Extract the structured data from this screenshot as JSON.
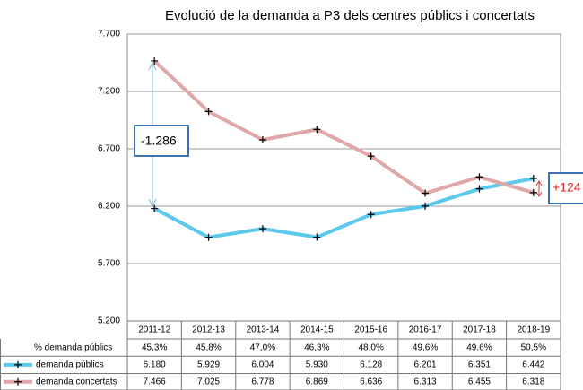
{
  "chart_data": {
    "type": "line",
    "title": "Evolució de la demanda a P3 dels centres públics i concertats",
    "categories": [
      "2011-12",
      "2012-13",
      "2013-14",
      "2014-15",
      "2015-16",
      "2016-17",
      "2017-18",
      "2018-19"
    ],
    "series": [
      {
        "name": "demanda públics",
        "color": "#5bc8ec",
        "values": [
          6180,
          5929,
          6004,
          5930,
          6128,
          6201,
          6351,
          6442
        ],
        "value_labels": [
          "6.180",
          "5.929",
          "6.004",
          "5.930",
          "6.128",
          "6.201",
          "6.351",
          "6.442"
        ]
      },
      {
        "name": "demanda concertats",
        "color": "#dfa7a7",
        "values": [
          7466,
          7025,
          6778,
          6869,
          6636,
          6313,
          6455,
          6318
        ],
        "value_labels": [
          "7.466",
          "7.025",
          "6.778",
          "6.869",
          "6.636",
          "6.313",
          "6.455",
          "6.318"
        ]
      }
    ],
    "table_rows": [
      {
        "name": "% demanda públics",
        "cells": [
          "45,3%",
          "45,8%",
          "47,0%",
          "46,3%",
          "48,0%",
          "49,6%",
          "49,6%",
          "50,5%"
        ]
      }
    ],
    "annotations": [
      "-1.286",
      "+124"
    ],
    "ylim": [
      5200,
      7700
    ],
    "yticks": [
      {
        "value": 5200,
        "label": "5.200"
      },
      {
        "value": 5700,
        "label": "5.700"
      },
      {
        "value": 6200,
        "label": "6.200"
      },
      {
        "value": 6700,
        "label": "6.700"
      },
      {
        "value": 7200,
        "label": "7.200"
      },
      {
        "value": 7700,
        "label": "7.700"
      }
    ],
    "grid": true
  }
}
